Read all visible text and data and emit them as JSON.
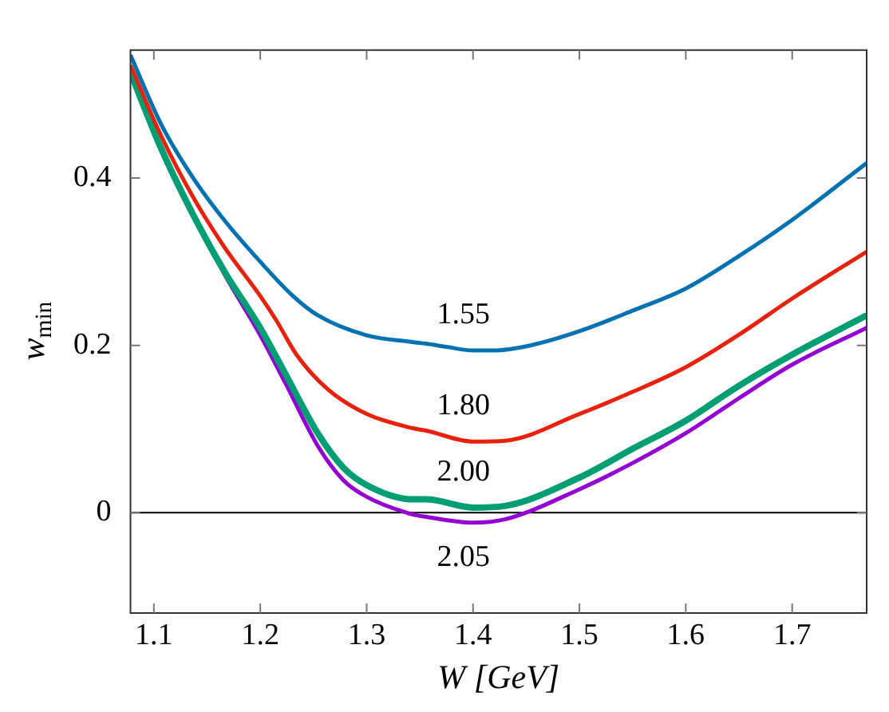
{
  "chart_data": {
    "type": "line",
    "xlabel": "W [GeV]",
    "ylabel": "w$_{min}$",
    "xlim": [
      1.078,
      1.77
    ],
    "ylim": [
      -0.12,
      0.553
    ],
    "xticks": [
      1.1,
      1.2,
      1.3,
      1.4,
      1.5,
      1.6,
      1.7
    ],
    "yticks": [
      0,
      0.2,
      0.4
    ],
    "grid": false,
    "legend": false,
    "marker": "none",
    "line_style": "solid",
    "ref_lines": [
      {
        "axis": "y",
        "value": 0,
        "color": "#000000"
      }
    ],
    "series": [
      {
        "name": "1.55",
        "color": "#0072b2",
        "x": [
          1.078,
          1.107,
          1.137,
          1.166,
          1.2,
          1.23,
          1.254,
          1.3,
          1.343,
          1.356,
          1.376,
          1.4,
          1.42,
          1.454,
          1.5,
          1.551,
          1.6,
          1.649,
          1.7,
          1.77
        ],
        "values": [
          0.547,
          0.464,
          0.4,
          0.35,
          0.3,
          0.26,
          0.236,
          0.212,
          0.204,
          0.202,
          0.198,
          0.194,
          0.194,
          0.2,
          0.217,
          0.242,
          0.268,
          0.306,
          0.35,
          0.418
        ]
      },
      {
        "name": "1.80",
        "color": "#e8200c",
        "x": [
          1.078,
          1.107,
          1.137,
          1.166,
          1.2,
          1.215,
          1.234,
          1.263,
          1.3,
          1.343,
          1.356,
          1.4,
          1.43,
          1.5,
          1.551,
          1.6,
          1.649,
          1.7,
          1.77
        ],
        "values": [
          0.535,
          0.45,
          0.377,
          0.318,
          0.259,
          0.23,
          0.189,
          0.148,
          0.118,
          0.101,
          0.098,
          0.085,
          0.086,
          0.118,
          0.145,
          0.174,
          0.212,
          0.256,
          0.312
        ]
      },
      {
        "name": "2.00",
        "color": "#009e73",
        "x": [
          1.078,
          1.107,
          1.137,
          1.166,
          1.2,
          1.224,
          1.254,
          1.278,
          1.3,
          1.343,
          1.356,
          1.4,
          1.43,
          1.5,
          1.551,
          1.6,
          1.649,
          1.7,
          1.77
        ],
        "values": [
          0.526,
          0.435,
          0.356,
          0.289,
          0.221,
          0.165,
          0.095,
          0.054,
          0.033,
          0.016,
          0.016,
          0.006,
          0.008,
          0.042,
          0.077,
          0.11,
          0.151,
          0.189,
          0.236
        ]
      },
      {
        "name": "2.05",
        "color": "#9400d3",
        "x": [
          1.078,
          1.107,
          1.166,
          1.2,
          1.224,
          1.254,
          1.278,
          1.3,
          1.343,
          1.356,
          1.4,
          1.43,
          1.5,
          1.551,
          1.6,
          1.649,
          1.7,
          1.77
        ],
        "values": [
          0.526,
          0.432,
          0.286,
          0.212,
          0.154,
          0.08,
          0.039,
          0.019,
          -0.002,
          -0.005,
          -0.012,
          -0.008,
          0.028,
          0.06,
          0.095,
          0.136,
          0.177,
          0.221
        ]
      }
    ]
  }
}
